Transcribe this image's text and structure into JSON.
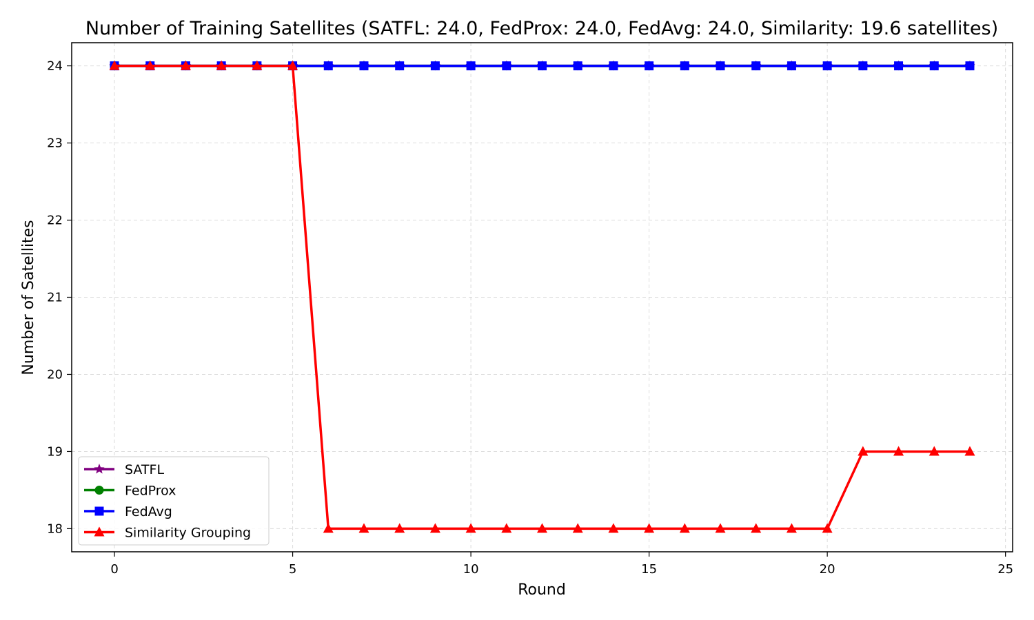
{
  "chart_data": {
    "type": "line",
    "title": "Number of Training Satellites (SATFL: 24.0, FedProx: 24.0, FedAvg: 24.0, Similarity: 19.6 satellites)",
    "xlabel": "Round",
    "ylabel": "Number of Satellites",
    "xlim": [
      -1.2,
      25.2
    ],
    "ylim": [
      17.7,
      24.3
    ],
    "xticks": [
      0,
      5,
      10,
      15,
      20,
      25
    ],
    "yticks": [
      18,
      19,
      20,
      21,
      22,
      23,
      24
    ],
    "grid": true,
    "legend_position": "lower-left",
    "x": [
      0,
      1,
      2,
      3,
      4,
      5,
      6,
      7,
      8,
      9,
      10,
      11,
      12,
      13,
      14,
      15,
      16,
      17,
      18,
      19,
      20,
      21,
      22,
      23,
      24
    ],
    "series": [
      {
        "name": "SATFL",
        "color": "#800080",
        "marker": "star",
        "values": [
          24,
          24,
          24,
          24,
          24,
          24,
          24,
          24,
          24,
          24,
          24,
          24,
          24,
          24,
          24,
          24,
          24,
          24,
          24,
          24,
          24,
          24,
          24,
          24,
          24
        ]
      },
      {
        "name": "FedProx",
        "color": "#008000",
        "marker": "circle",
        "values": [
          24,
          24,
          24,
          24,
          24,
          24,
          24,
          24,
          24,
          24,
          24,
          24,
          24,
          24,
          24,
          24,
          24,
          24,
          24,
          24,
          24,
          24,
          24,
          24,
          24
        ]
      },
      {
        "name": "FedAvg",
        "color": "#0000ff",
        "marker": "square",
        "values": [
          24,
          24,
          24,
          24,
          24,
          24,
          24,
          24,
          24,
          24,
          24,
          24,
          24,
          24,
          24,
          24,
          24,
          24,
          24,
          24,
          24,
          24,
          24,
          24,
          24
        ]
      },
      {
        "name": "Similarity Grouping",
        "color": "#ff0000",
        "marker": "triangle",
        "values": [
          24,
          24,
          24,
          24,
          24,
          24,
          18,
          18,
          18,
          18,
          18,
          18,
          18,
          18,
          18,
          18,
          18,
          18,
          18,
          18,
          18,
          19,
          19,
          19,
          19
        ]
      }
    ]
  }
}
